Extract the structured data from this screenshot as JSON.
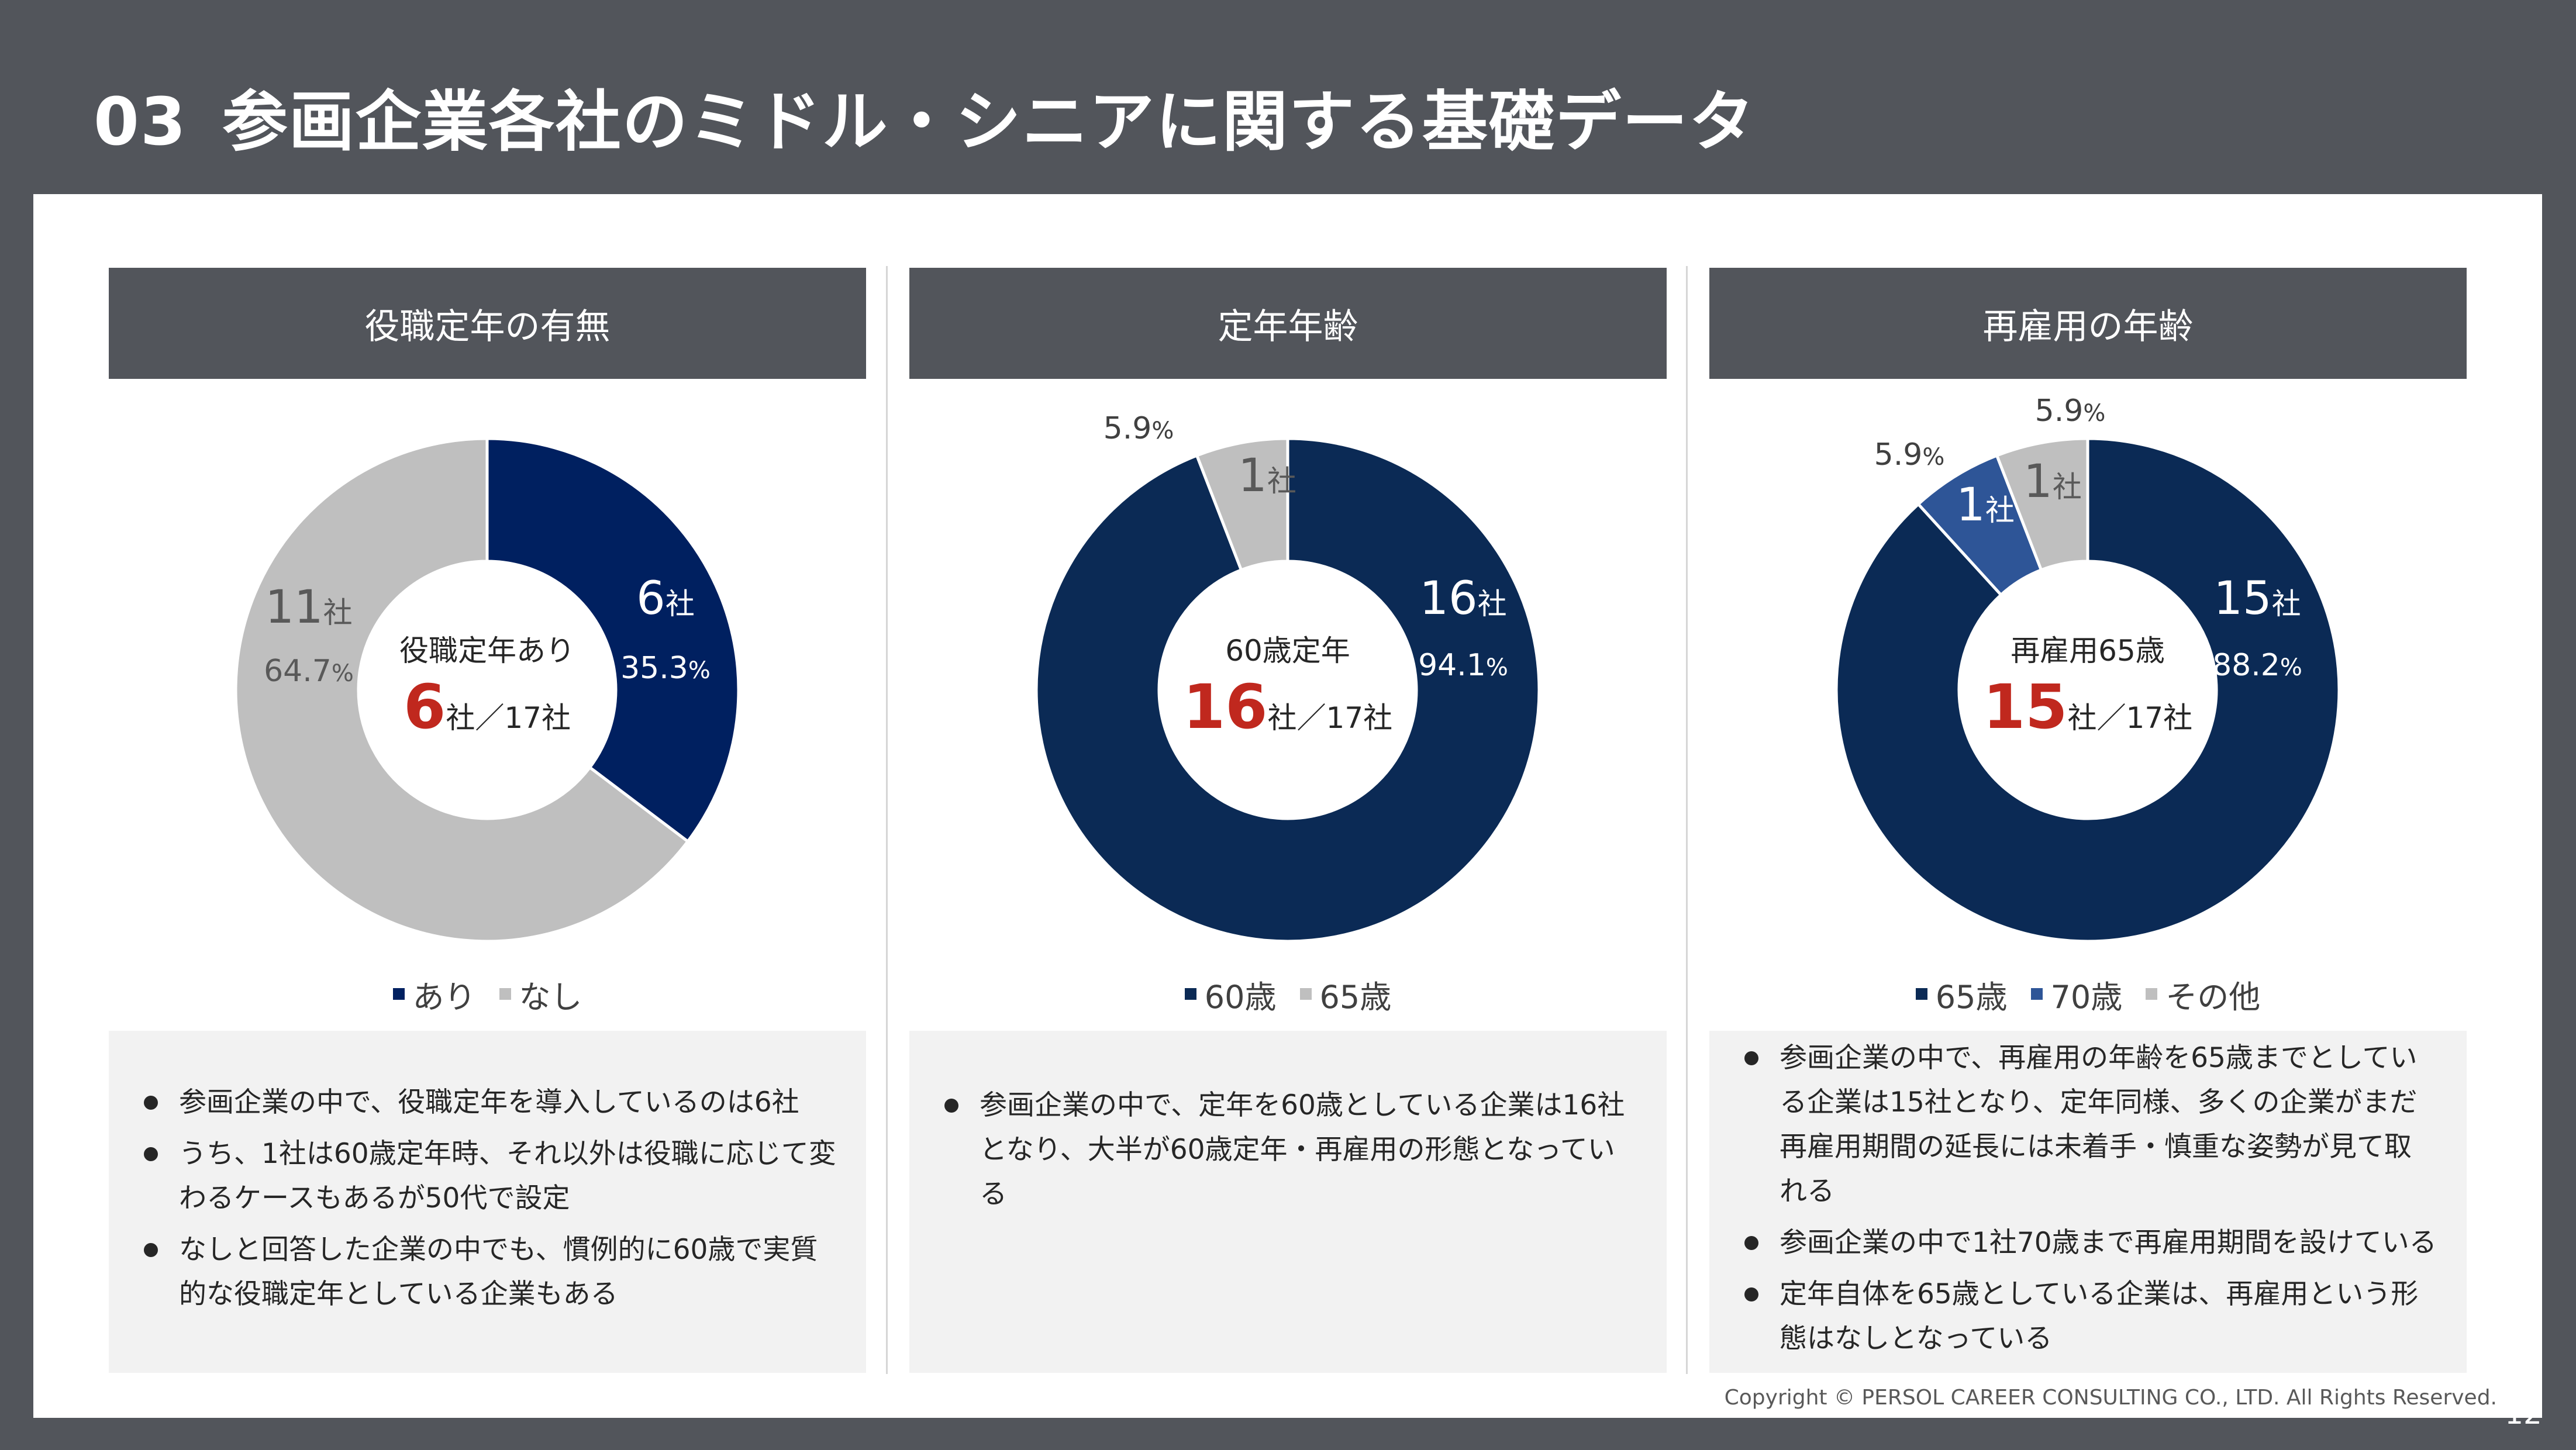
{
  "title": {
    "number": "03",
    "text": "参画企業各社のミドル・シニアに関する基礎データ"
  },
  "colors": {
    "navy": "#002050",
    "navy_dark": "#062a55",
    "blue": "#2e5597",
    "gray": "#bfbfbf",
    "accent_red": "#c0281e",
    "header_bg": "#52555b"
  },
  "columns": [
    {
      "header": "役職定年の有無",
      "center": {
        "label": "役職定年あり",
        "big": "6",
        "suffix": "社／17社"
      },
      "legend": [
        {
          "name": "あり",
          "color": "#002060"
        },
        {
          "name": "なし",
          "color": "#bfbfbf"
        }
      ],
      "notes": [
        "参画企業の中で、役職定年を導入しているのは6社",
        "うち、1社は60歳定年時、それ以外は役職に応じて変わるケースもあるが50代で設定",
        "なしと回答した企業の中でも、慣例的に60歳で実質的な役職定年としている企業もある"
      ]
    },
    {
      "header": "定年年齢",
      "center": {
        "label": "60歳定年",
        "big": "16",
        "suffix": "社／17社"
      },
      "legend": [
        {
          "name": "60歳",
          "color": "#0b2a55"
        },
        {
          "name": "65歳",
          "color": "#bfbfbf"
        }
      ],
      "notes": [
        "参画企業の中で、定年を60歳としている企業は16社となり、大半が60歳定年・再雇用の形態となっている"
      ]
    },
    {
      "header": "再雇用の年齢",
      "center": {
        "label": "再雇用65歳",
        "big": "15",
        "suffix": "社／17社"
      },
      "legend": [
        {
          "name": "65歳",
          "color": "#0b2a55"
        },
        {
          "name": "70歳",
          "color": "#2e5597"
        },
        {
          "name": "その他",
          "color": "#bfbfbf"
        }
      ],
      "notes": [
        "参画企業の中で、再雇用の年齢を65歳までとしている企業は15社となり、定年同様、多くの企業がまだ再雇用期間の延長には未着手・慎重な姿勢が見て取れる",
        "参画企業の中で1社70歳まで再雇用期間を設けている",
        "定年自体を65歳としている企業は、再雇用という形態はなしとなっている"
      ]
    }
  ],
  "chart_data": [
    {
      "type": "pie",
      "title": "役職定年の有無",
      "categories": [
        "あり",
        "なし"
      ],
      "values": [
        6,
        11
      ],
      "value_labels": [
        "6社",
        "11社"
      ],
      "percent_labels": [
        "35.3%",
        "64.7%"
      ],
      "colors": [
        "#002060",
        "#bfbfbf"
      ],
      "legend": "bottom"
    },
    {
      "type": "pie",
      "title": "定年年齢",
      "categories": [
        "60歳",
        "65歳"
      ],
      "values": [
        16,
        1
      ],
      "value_labels": [
        "16社",
        "1社"
      ],
      "percent_labels": [
        "94.1%",
        "5.9%"
      ],
      "colors": [
        "#0b2a55",
        "#bfbfbf"
      ],
      "legend": "bottom"
    },
    {
      "type": "pie",
      "title": "再雇用の年齢",
      "categories": [
        "65歳",
        "70歳",
        "その他"
      ],
      "values": [
        15,
        1,
        1
      ],
      "value_labels": [
        "15社",
        "1社",
        "1社"
      ],
      "percent_labels": [
        "88.2%",
        "5.9%",
        "5.9%"
      ],
      "colors": [
        "#0b2a55",
        "#2e5597",
        "#bfbfbf"
      ],
      "legend": "bottom"
    }
  ],
  "footer": {
    "copyright": "Copyright © PERSOL CAREER CONSULTING CO., LTD. All Rights Reserved.",
    "page": "12"
  }
}
